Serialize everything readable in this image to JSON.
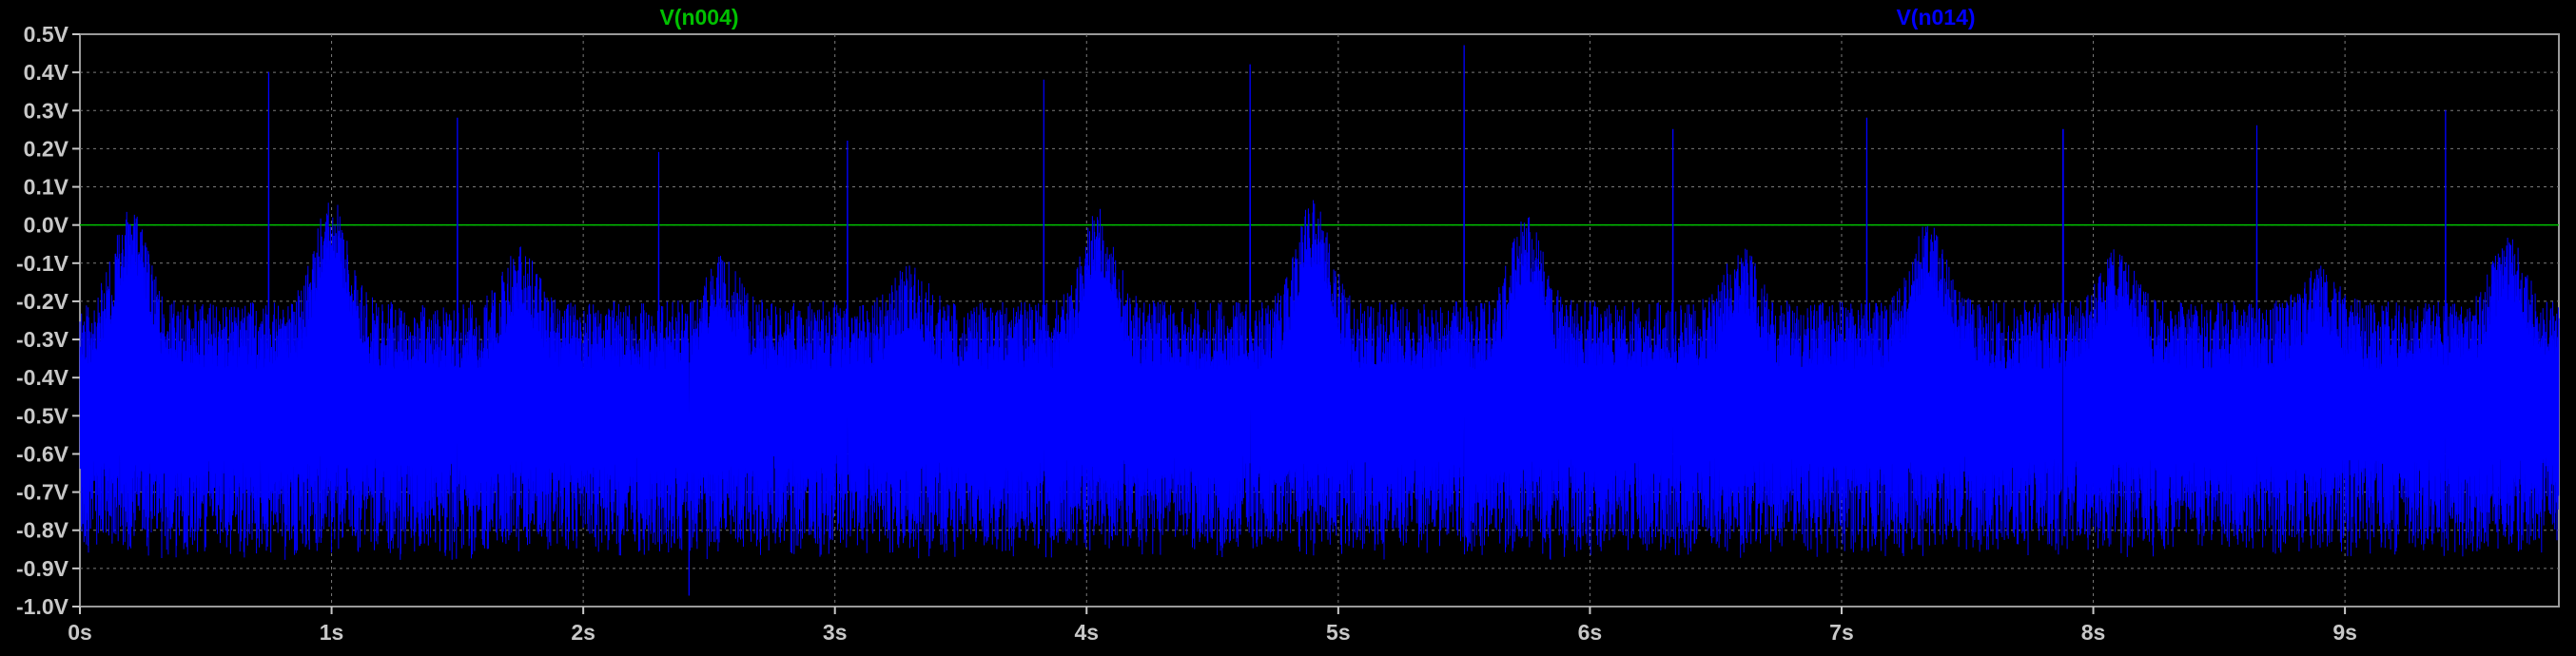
{
  "chart_data": {
    "type": "line",
    "xlabel": "",
    "ylabel": "",
    "xlim": [
      0,
      9.85
    ],
    "ylim": [
      -1.0,
      0.5
    ],
    "grid": true,
    "x_ticks": [
      "0s",
      "1s",
      "2s",
      "3s",
      "4s",
      "5s",
      "6s",
      "7s",
      "8s",
      "9s"
    ],
    "x_tick_values": [
      0,
      1,
      2,
      3,
      4,
      5,
      6,
      7,
      8,
      9
    ],
    "y_ticks": [
      "0.5V",
      "0.4V",
      "0.3V",
      "0.2V",
      "0.1V",
      "0.0V",
      "-0.1V",
      "-0.2V",
      "-0.3V",
      "-0.4V",
      "-0.5V",
      "-0.6V",
      "-0.7V",
      "-0.8V",
      "-0.9V",
      "-1.0V"
    ],
    "y_tick_values": [
      0.5,
      0.4,
      0.3,
      0.2,
      0.1,
      0.0,
      -0.1,
      -0.2,
      -0.3,
      -0.4,
      -0.5,
      -0.6,
      -0.7,
      -0.8,
      -0.9,
      -1.0
    ],
    "series": [
      {
        "name": "V(n004)",
        "color": "#00c000",
        "x": [
          0,
          9.85
        ],
        "values": [
          0.0,
          0.0
        ]
      },
      {
        "name": "V(n014)",
        "color": "#0000ff",
        "style": "dense noisy oscillation",
        "band_low": -0.82,
        "band_high": -0.2,
        "x": [
          0,
          0.2,
          0.5,
          0.75,
          1.0,
          1.25,
          1.5,
          1.75,
          2.0,
          2.3,
          2.55,
          2.8,
          3.05,
          3.3,
          3.55,
          3.83,
          4.05,
          4.3,
          4.65,
          4.9,
          5.2,
          5.5,
          5.75,
          6.0,
          6.33,
          6.6,
          6.85,
          7.1,
          7.35,
          7.6,
          7.88,
          8.1,
          8.35,
          8.65,
          8.9,
          9.15,
          9.4,
          9.65,
          9.85
        ],
        "values": [
          -0.5,
          0.05,
          -0.45,
          0.4,
          0.08,
          -0.35,
          0.28,
          -0.05,
          -0.5,
          0.19,
          -0.08,
          -0.55,
          0.22,
          -0.1,
          -0.48,
          0.38,
          0.05,
          -0.45,
          0.42,
          0.07,
          -0.5,
          0.47,
          0.03,
          -0.55,
          0.25,
          -0.05,
          -0.5,
          0.28,
          0.02,
          -0.5,
          0.25,
          -0.05,
          -0.48,
          0.26,
          -0.1,
          -0.5,
          0.3,
          -0.02,
          -0.45
        ],
        "peak_x": [
          0.75,
          1.5,
          2.3,
          3.05,
          3.83,
          4.65,
          5.5,
          6.33,
          7.1,
          7.88,
          8.65,
          9.4
        ],
        "peak_values": [
          0.4,
          0.28,
          0.19,
          0.22,
          0.38,
          0.42,
          0.47,
          0.25,
          0.28,
          0.25,
          0.26,
          0.3
        ],
        "hump_x": [
          0.2,
          1.0,
          1.75,
          2.55,
          3.3,
          4.05,
          4.9,
          5.75,
          6.6,
          7.35,
          8.1,
          8.9,
          9.65
        ],
        "hump_values": [
          0.05,
          0.08,
          -0.05,
          -0.08,
          -0.1,
          0.05,
          0.07,
          0.03,
          -0.05,
          0.02,
          -0.05,
          -0.1,
          -0.02
        ],
        "min_value": -0.97,
        "min_x": 2.42
      }
    ]
  }
}
